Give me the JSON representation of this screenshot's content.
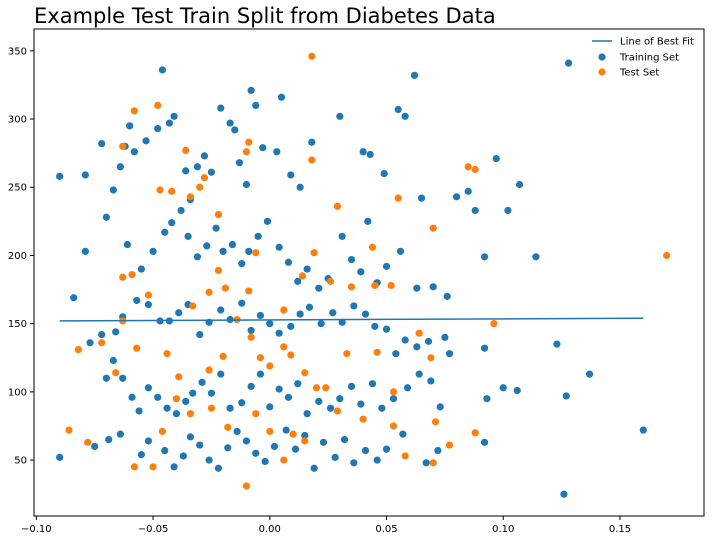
{
  "chart_data": {
    "type": "scatter",
    "title": "Example Test Train Split from Diabetes Data",
    "xlabel": "",
    "ylabel": "",
    "xlim": [
      -0.101,
      0.186
    ],
    "ylim": [
      9,
      366
    ],
    "x_ticks": [
      -0.1,
      -0.05,
      0.0,
      0.05,
      0.1,
      0.15
    ],
    "x_tick_labels": [
      "−0.10",
      "−0.05",
      "0.00",
      "0.05",
      "0.10",
      "0.15"
    ],
    "y_ticks": [
      50,
      100,
      150,
      200,
      250,
      300,
      350
    ],
    "y_tick_labels": [
      "50",
      "100",
      "150",
      "200",
      "250",
      "300",
      "350"
    ],
    "grid": false,
    "legend_position": "top-right",
    "colors": {
      "line": "#1f77b4",
      "train": "#1f77b4",
      "test": "#ff7f0e"
    },
    "series": [
      {
        "name": "Line of Best Fit",
        "kind": "line",
        "x": [
          -0.09,
          0.16
        ],
        "y": [
          152,
          154
        ]
      },
      {
        "name": "Training Set",
        "kind": "scatter",
        "points": [
          [
            -0.09,
            258
          ],
          [
            -0.079,
            259
          ],
          [
            -0.072,
            282
          ],
          [
            -0.067,
            248
          ],
          [
            -0.064,
            265
          ],
          [
            -0.062,
            280
          ],
          [
            -0.06,
            295
          ],
          [
            -0.058,
            276
          ],
          [
            -0.053,
            284
          ],
          [
            -0.048,
            293
          ],
          [
            -0.046,
            336
          ],
          [
            -0.043,
            297
          ],
          [
            -0.041,
            302
          ],
          [
            -0.036,
            262
          ],
          [
            -0.034,
            241
          ],
          [
            -0.031,
            265
          ],
          [
            -0.028,
            273
          ],
          [
            -0.025,
            261
          ],
          [
            -0.021,
            308
          ],
          [
            -0.017,
            297
          ],
          [
            -0.015,
            292
          ],
          [
            -0.013,
            268
          ],
          [
            -0.01,
            252
          ],
          [
            -0.008,
            321
          ],
          [
            -0.006,
            310
          ],
          [
            -0.003,
            279
          ],
          [
            0.003,
            276
          ],
          [
            0.005,
            316
          ],
          [
            0.009,
            259
          ],
          [
            0.013,
            250
          ],
          [
            0.018,
            283
          ],
          [
            0.03,
            302
          ],
          [
            0.04,
            276
          ],
          [
            0.043,
            274
          ],
          [
            0.049,
            260
          ],
          [
            0.055,
            307
          ],
          [
            0.058,
            302
          ],
          [
            0.062,
            332
          ],
          [
            0.065,
            242
          ],
          [
            0.08,
            243
          ],
          [
            0.085,
            247
          ],
          [
            0.088,
            233
          ],
          [
            0.097,
            271
          ],
          [
            0.102,
            233
          ],
          [
            0.107,
            252
          ],
          [
            0.128,
            341
          ],
          [
            -0.079,
            203
          ],
          [
            -0.07,
            228
          ],
          [
            -0.061,
            208
          ],
          [
            -0.055,
            190
          ],
          [
            -0.05,
            203
          ],
          [
            -0.045,
            217
          ],
          [
            -0.042,
            224
          ],
          [
            -0.038,
            233
          ],
          [
            -0.035,
            214
          ],
          [
            -0.031,
            199
          ],
          [
            -0.027,
            207
          ],
          [
            -0.023,
            220
          ],
          [
            -0.02,
            203
          ],
          [
            -0.016,
            208
          ],
          [
            -0.012,
            194
          ],
          [
            -0.009,
            203
          ],
          [
            -0.005,
            214
          ],
          [
            -0.001,
            225
          ],
          [
            0.004,
            206
          ],
          [
            0.008,
            195
          ],
          [
            0.012,
            181
          ],
          [
            0.016,
            190
          ],
          [
            0.021,
            176
          ],
          [
            0.025,
            183
          ],
          [
            0.031,
            214
          ],
          [
            0.035,
            197
          ],
          [
            0.039,
            188
          ],
          [
            0.042,
            225
          ],
          [
            0.046,
            180
          ],
          [
            0.05,
            192
          ],
          [
            0.056,
            203
          ],
          [
            0.063,
            176
          ],
          [
            0.07,
            177
          ],
          [
            0.076,
            170
          ],
          [
            0.092,
            199
          ],
          [
            0.114,
            199
          ],
          [
            -0.084,
            169
          ],
          [
            -0.077,
            136
          ],
          [
            -0.072,
            142
          ],
          [
            -0.066,
            144
          ],
          [
            -0.063,
            155
          ],
          [
            -0.057,
            167
          ],
          [
            -0.052,
            164
          ],
          [
            -0.047,
            152
          ],
          [
            -0.043,
            152
          ],
          [
            -0.039,
            158
          ],
          [
            -0.035,
            164
          ],
          [
            -0.03,
            142
          ],
          [
            -0.026,
            151
          ],
          [
            -0.021,
            160
          ],
          [
            -0.017,
            153
          ],
          [
            -0.012,
            165
          ],
          [
            -0.008,
            145
          ],
          [
            -0.004,
            156
          ],
          [
            0.0,
            150
          ],
          [
            0.004,
            143
          ],
          [
            0.009,
            148
          ],
          [
            0.013,
            157
          ],
          [
            0.017,
            162
          ],
          [
            0.022,
            150
          ],
          [
            0.027,
            158
          ],
          [
            0.031,
            151
          ],
          [
            0.036,
            163
          ],
          [
            0.041,
            157
          ],
          [
            0.045,
            148
          ],
          [
            0.05,
            146
          ],
          [
            0.054,
            128
          ],
          [
            0.058,
            138
          ],
          [
            0.063,
            133
          ],
          [
            0.068,
            137
          ],
          [
            0.075,
            140
          ],
          [
            0.077,
            128
          ],
          [
            0.092,
            132
          ],
          [
            0.123,
            135
          ],
          [
            -0.07,
            110
          ],
          [
            -0.067,
            123
          ],
          [
            -0.063,
            110
          ],
          [
            -0.059,
            96
          ],
          [
            -0.056,
            86
          ],
          [
            -0.052,
            103
          ],
          [
            -0.048,
            96
          ],
          [
            -0.044,
            88
          ],
          [
            -0.04,
            84
          ],
          [
            -0.036,
            93
          ],
          [
            -0.033,
            99
          ],
          [
            -0.029,
            107
          ],
          [
            -0.025,
            99
          ],
          [
            -0.021,
            113
          ],
          [
            -0.017,
            88
          ],
          [
            -0.012,
            92
          ],
          [
            -0.008,
            104
          ],
          [
            -0.004,
            113
          ],
          [
            0.0,
            89
          ],
          [
            0.004,
            102
          ],
          [
            0.008,
            96
          ],
          [
            0.012,
            106
          ],
          [
            0.016,
            84
          ],
          [
            0.021,
            93
          ],
          [
            0.026,
            88
          ],
          [
            0.03,
            95
          ],
          [
            0.035,
            104
          ],
          [
            0.039,
            91
          ],
          [
            0.044,
            106
          ],
          [
            0.048,
            88
          ],
          [
            0.053,
            95
          ],
          [
            0.059,
            103
          ],
          [
            0.064,
            113
          ],
          [
            0.069,
            108
          ],
          [
            0.073,
            89
          ],
          [
            0.093,
            95
          ],
          [
            0.1,
            103
          ],
          [
            0.106,
            101
          ],
          [
            0.127,
            97
          ],
          [
            0.137,
            113
          ],
          [
            -0.09,
            52
          ],
          [
            -0.075,
            60
          ],
          [
            -0.069,
            65
          ],
          [
            -0.064,
            69
          ],
          [
            -0.055,
            54
          ],
          [
            -0.052,
            64
          ],
          [
            -0.045,
            57
          ],
          [
            -0.041,
            45
          ],
          [
            -0.037,
            53
          ],
          [
            -0.034,
            67
          ],
          [
            -0.03,
            61
          ],
          [
            -0.026,
            50
          ],
          [
            -0.022,
            44
          ],
          [
            -0.018,
            59
          ],
          [
            -0.014,
            71
          ],
          [
            -0.01,
            64
          ],
          [
            -0.006,
            55
          ],
          [
            -0.002,
            49
          ],
          [
            0.002,
            60
          ],
          [
            0.007,
            72
          ],
          [
            0.011,
            58
          ],
          [
            0.015,
            68
          ],
          [
            0.019,
            44
          ],
          [
            0.023,
            63
          ],
          [
            0.028,
            52
          ],
          [
            0.032,
            65
          ],
          [
            0.036,
            48
          ],
          [
            0.041,
            57
          ],
          [
            0.046,
            50
          ],
          [
            0.05,
            58
          ],
          [
            0.057,
            69
          ],
          [
            0.067,
            48
          ],
          [
            0.072,
            57
          ],
          [
            0.092,
            63
          ],
          [
            0.126,
            25
          ],
          [
            0.16,
            72
          ]
        ]
      },
      {
        "name": "Test Set",
        "kind": "scatter",
        "points": [
          [
            -0.063,
            280
          ],
          [
            -0.058,
            306
          ],
          [
            -0.048,
            310
          ],
          [
            -0.036,
            277
          ],
          [
            -0.028,
            257
          ],
          [
            -0.022,
            230
          ],
          [
            -0.01,
            276
          ],
          [
            -0.009,
            283
          ],
          [
            0.018,
            346
          ],
          [
            0.018,
            270
          ],
          [
            0.029,
            236
          ],
          [
            0.044,
            206
          ],
          [
            0.055,
            242
          ],
          [
            0.085,
            265
          ],
          [
            0.088,
            263
          ],
          [
            -0.063,
            184
          ],
          [
            -0.059,
            186
          ],
          [
            -0.052,
            171
          ],
          [
            -0.047,
            248
          ],
          [
            -0.042,
            247
          ],
          [
            -0.034,
            243
          ],
          [
            -0.03,
            250
          ],
          [
            -0.026,
            173
          ],
          [
            -0.022,
            189
          ],
          [
            -0.019,
            176
          ],
          [
            -0.009,
            174
          ],
          [
            -0.006,
            202
          ],
          [
            0.006,
            160
          ],
          [
            0.014,
            185
          ],
          [
            0.019,
            202
          ],
          [
            0.026,
            181
          ],
          [
            0.035,
            177
          ],
          [
            0.045,
            178
          ],
          [
            0.052,
            178
          ],
          [
            0.07,
            220
          ],
          [
            0.17,
            200
          ],
          [
            -0.082,
            131
          ],
          [
            -0.072,
            136
          ],
          [
            -0.066,
            114
          ],
          [
            -0.063,
            152
          ],
          [
            -0.057,
            132
          ],
          [
            -0.044,
            128
          ],
          [
            -0.039,
            111
          ],
          [
            -0.033,
            163
          ],
          [
            -0.026,
            116
          ],
          [
            -0.02,
            126
          ],
          [
            -0.014,
            153
          ],
          [
            -0.008,
            140
          ],
          [
            -0.004,
            125
          ],
          [
            0.0,
            119
          ],
          [
            0.006,
            133
          ],
          [
            0.009,
            127
          ],
          [
            0.015,
            114
          ],
          [
            0.02,
            103
          ],
          [
            0.033,
            128
          ],
          [
            0.046,
            129
          ],
          [
            0.053,
            100
          ],
          [
            0.064,
            143
          ],
          [
            0.069,
            125
          ],
          [
            0.096,
            150
          ],
          [
            -0.086,
            72
          ],
          [
            -0.078,
            63
          ],
          [
            -0.058,
            45
          ],
          [
            -0.05,
            45
          ],
          [
            -0.046,
            71
          ],
          [
            -0.04,
            95
          ],
          [
            -0.034,
            84
          ],
          [
            -0.025,
            88
          ],
          [
            -0.018,
            74
          ],
          [
            -0.01,
            31
          ],
          [
            -0.006,
            84
          ],
          [
            0.0,
            71
          ],
          [
            0.006,
            50
          ],
          [
            0.01,
            69
          ],
          [
            0.015,
            64
          ],
          [
            0.024,
            103
          ],
          [
            0.029,
            86
          ],
          [
            0.04,
            80
          ],
          [
            0.053,
            75
          ],
          [
            0.058,
            53
          ],
          [
            0.07,
            48
          ],
          [
            0.071,
            78
          ],
          [
            0.077,
            61
          ],
          [
            0.088,
            70
          ]
        ]
      }
    ]
  }
}
